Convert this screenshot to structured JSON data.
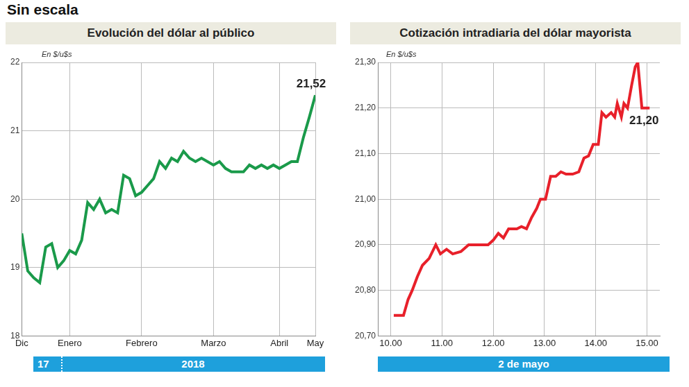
{
  "heading": "Sin escala",
  "chart_data": [
    {
      "type": "line",
      "title": "Evolución del dólar al público",
      "unit": "En $/u$s",
      "categories": [
        "Dic",
        null,
        null,
        null,
        null,
        null,
        null,
        null,
        "Enero",
        null,
        null,
        null,
        null,
        null,
        null,
        null,
        null,
        null,
        null,
        null,
        "Febrero",
        null,
        null,
        null,
        null,
        null,
        null,
        null,
        null,
        null,
        null,
        null,
        "Marzo",
        null,
        null,
        null,
        null,
        null,
        null,
        null,
        null,
        null,
        null,
        "Abril",
        null,
        null,
        null,
        null,
        null,
        "May"
      ],
      "values": [
        19.5,
        18.95,
        18.85,
        18.78,
        19.3,
        19.35,
        19.0,
        19.1,
        19.25,
        19.2,
        19.4,
        19.95,
        19.85,
        20.0,
        19.8,
        19.85,
        19.8,
        20.35,
        20.3,
        20.05,
        20.1,
        20.2,
        20.3,
        20.55,
        20.45,
        20.6,
        20.55,
        20.7,
        20.6,
        20.55,
        20.6,
        20.55,
        20.5,
        20.55,
        20.45,
        20.4,
        20.4,
        20.4,
        20.5,
        20.45,
        20.5,
        20.45,
        20.5,
        20.45,
        20.5,
        20.55,
        20.55,
        20.9,
        21.2,
        21.52
      ],
      "color": "#1a9a4a",
      "ylim": [
        18,
        22
      ],
      "yticks": [
        18,
        19,
        20,
        21,
        22
      ],
      "grid": true,
      "annotations": [
        {
          "text": "21,52",
          "x": "May",
          "y": 21.52
        }
      ],
      "date_band": [
        "17",
        "2018"
      ]
    },
    {
      "type": "line",
      "title": "Cotización intradiaria del dólar mayorista",
      "unit": "En $/u$s",
      "x": [
        10.06,
        10.25,
        10.34,
        10.42,
        10.52,
        10.62,
        10.75,
        10.88,
        10.97,
        11.09,
        11.21,
        11.37,
        11.52,
        11.71,
        11.9,
        12.0,
        12.1,
        12.2,
        12.3,
        12.46,
        12.55,
        12.65,
        12.75,
        12.85,
        12.92,
        13.02,
        13.12,
        13.22,
        13.32,
        13.42,
        13.55,
        13.67,
        13.77,
        13.86,
        13.95,
        14.05,
        14.12,
        14.2,
        14.3,
        14.37,
        14.42,
        14.5,
        14.55,
        14.62,
        14.7,
        14.77,
        14.82,
        14.9,
        14.97,
        15.05
      ],
      "values": [
        20.745,
        20.745,
        20.78,
        20.8,
        20.83,
        20.855,
        20.87,
        20.9,
        20.88,
        20.89,
        20.88,
        20.885,
        20.9,
        20.9,
        20.9,
        20.91,
        20.925,
        20.915,
        20.935,
        20.935,
        20.94,
        20.935,
        20.96,
        20.98,
        21.0,
        21.0,
        21.05,
        21.05,
        21.06,
        21.055,
        21.055,
        21.06,
        21.09,
        21.095,
        21.12,
        21.12,
        21.19,
        21.18,
        21.19,
        21.18,
        21.21,
        21.18,
        21.21,
        21.2,
        21.25,
        21.29,
        21.3,
        21.2,
        21.2,
        21.2
      ],
      "color": "#e8202a",
      "xlim": [
        9.75,
        15.25
      ],
      "xticks": [
        {
          "value": 10,
          "label": "10.00"
        },
        {
          "value": 11,
          "label": "11.00"
        },
        {
          "value": 12,
          "label": "12.00"
        },
        {
          "value": 13,
          "label": "13.00"
        },
        {
          "value": 14,
          "label": "14.00"
        },
        {
          "value": 15,
          "label": "15.00"
        }
      ],
      "ylim": [
        20.7,
        21.3
      ],
      "yticks": [
        {
          "value": 20.7,
          "label": "20,70"
        },
        {
          "value": 20.8,
          "label": "20,80"
        },
        {
          "value": 20.9,
          "label": "20,90"
        },
        {
          "value": 21.0,
          "label": "21,00"
        },
        {
          "value": 21.1,
          "label": "21,10"
        },
        {
          "value": 21.2,
          "label": "21,20"
        },
        {
          "value": 21.3,
          "label": "21,30"
        }
      ],
      "grid": true,
      "annotations": [
        {
          "text": "21,20",
          "x": 15.05,
          "y": 21.2
        }
      ],
      "date_band": [
        "2 de mayo"
      ]
    }
  ]
}
